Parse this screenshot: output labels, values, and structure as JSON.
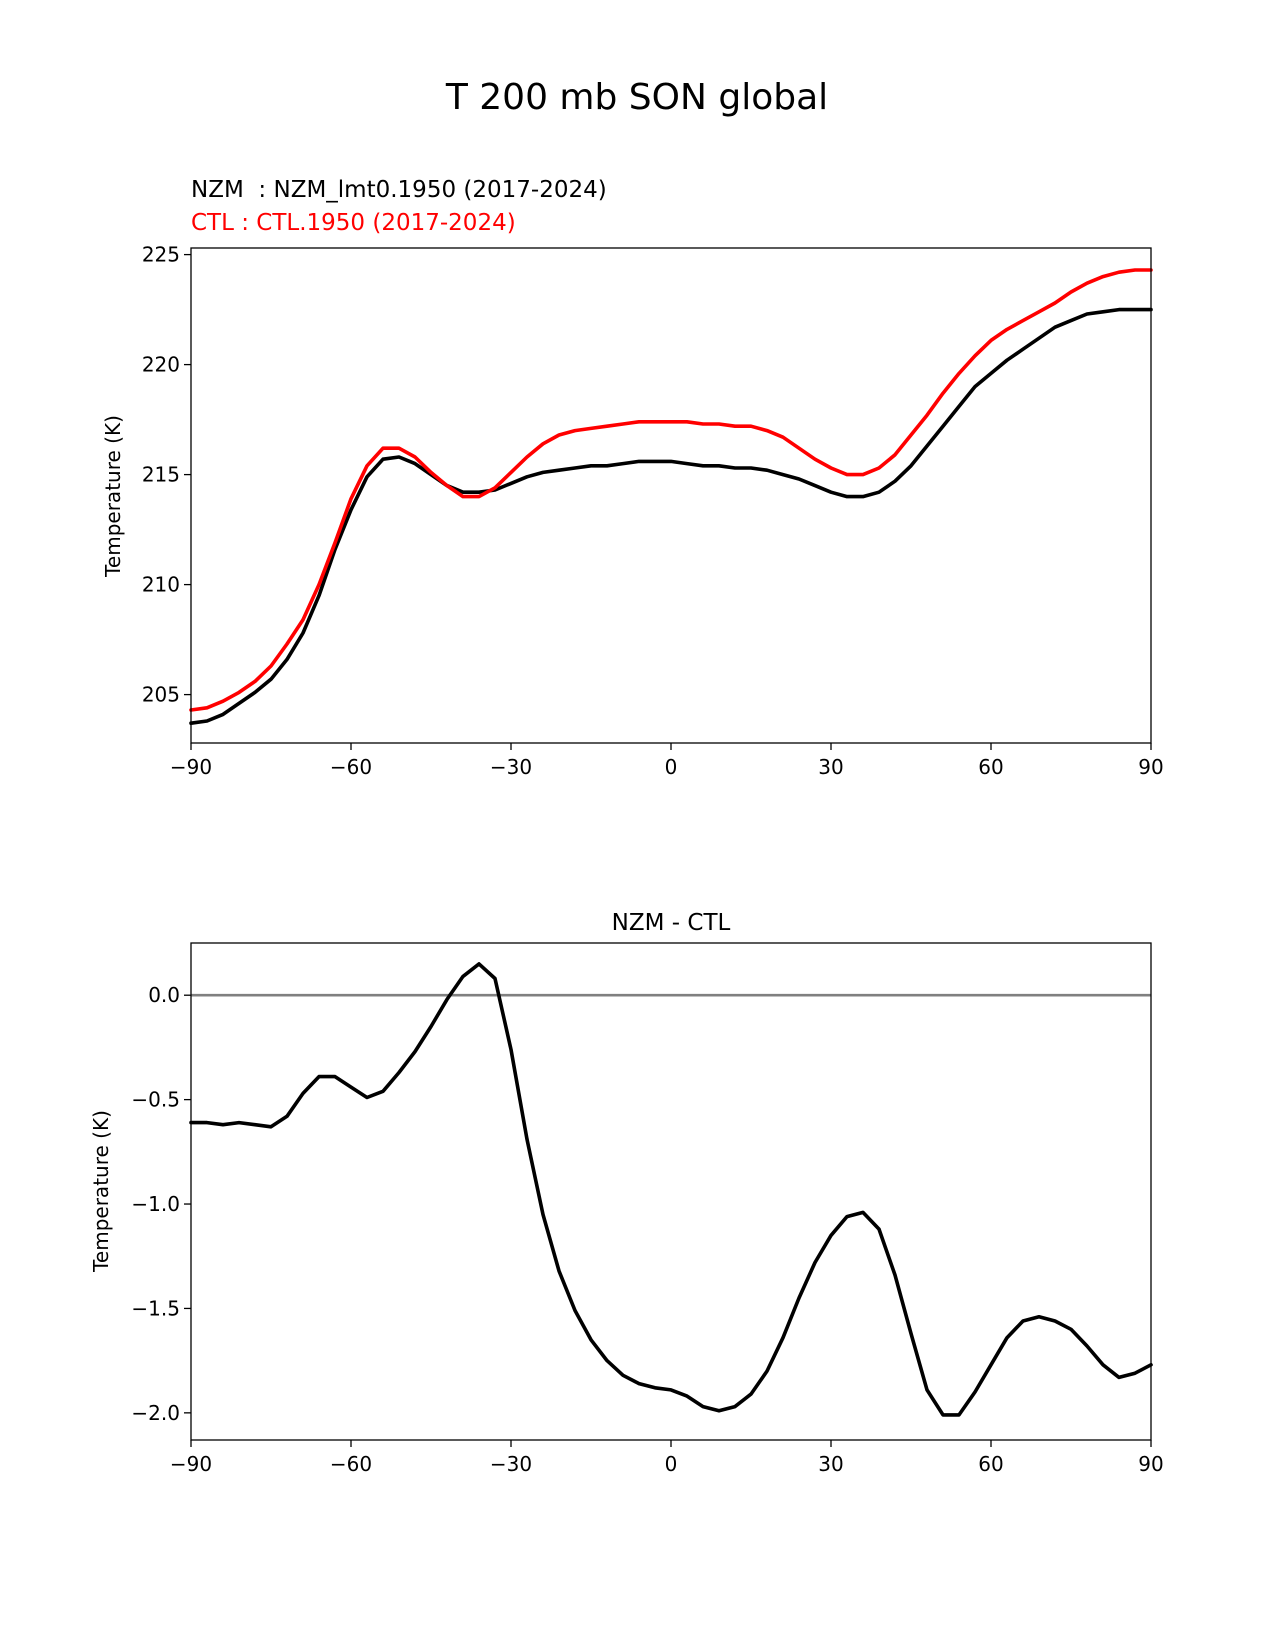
{
  "figure": {
    "title": "T 200 mb SON global"
  },
  "chart_data": [
    {
      "type": "line",
      "title": "",
      "legend": [
        {
          "name": "NZM  : NZM_lmt0.1950 (2017-2024)",
          "color": "#000000"
        },
        {
          "name": "CTL : CTL.1950 (2017-2024)",
          "color": "#ff0000"
        }
      ],
      "xlabel": "",
      "ylabel": "Temperature (K)",
      "xlim": [
        -90,
        90
      ],
      "ylim": [
        202.8,
        225.3
      ],
      "xticks": [
        -90,
        -60,
        -30,
        0,
        30,
        60,
        90
      ],
      "xtick_labels": [
        "−90",
        "−60",
        "−30",
        "0",
        "30",
        "60",
        "90"
      ],
      "yticks": [
        205,
        210,
        215,
        220,
        225
      ],
      "ytick_labels": [
        "205",
        "210",
        "215",
        "220",
        "225"
      ],
      "x": [
        -90,
        -87,
        -84,
        -81,
        -78,
        -75,
        -72,
        -69,
        -66,
        -63,
        -60,
        -57,
        -54,
        -51,
        -48,
        -45,
        -42,
        -39,
        -36,
        -33,
        -30,
        -27,
        -24,
        -21,
        -18,
        -15,
        -12,
        -9,
        -6,
        -3,
        0,
        3,
        6,
        9,
        12,
        15,
        18,
        21,
        24,
        27,
        30,
        33,
        36,
        39,
        42,
        45,
        48,
        51,
        54,
        57,
        60,
        63,
        66,
        69,
        72,
        75,
        78,
        81,
        84,
        87,
        90
      ],
      "series": [
        {
          "name": "NZM",
          "color": "#000000",
          "values": [
            203.7,
            203.8,
            204.1,
            204.6,
            205.1,
            205.7,
            206.6,
            207.8,
            209.5,
            211.6,
            213.4,
            214.9,
            215.7,
            215.8,
            215.5,
            215.0,
            214.5,
            214.2,
            214.2,
            214.3,
            214.6,
            214.9,
            215.1,
            215.2,
            215.3,
            215.4,
            215.4,
            215.5,
            215.6,
            215.6,
            215.6,
            215.5,
            215.4,
            215.4,
            215.3,
            215.3,
            215.2,
            215.0,
            214.8,
            214.5,
            214.2,
            214.0,
            214.0,
            214.2,
            214.7,
            215.4,
            216.3,
            217.2,
            218.1,
            219.0,
            219.6,
            220.2,
            220.7,
            221.2,
            221.7,
            222.0,
            222.3,
            222.4,
            222.5,
            222.5,
            222.5
          ]
        },
        {
          "name": "CTL",
          "color": "#ff0000",
          "values": [
            204.3,
            204.4,
            204.7,
            205.1,
            205.6,
            206.3,
            207.3,
            208.4,
            210.0,
            211.9,
            213.9,
            215.4,
            216.2,
            216.2,
            215.8,
            215.1,
            214.5,
            214.0,
            214.0,
            214.4,
            215.1,
            215.8,
            216.4,
            216.8,
            217.0,
            217.1,
            217.2,
            217.3,
            217.4,
            217.4,
            217.4,
            217.4,
            217.3,
            217.3,
            217.2,
            217.2,
            217.0,
            216.7,
            216.2,
            215.7,
            215.3,
            215.0,
            215.0,
            215.3,
            215.9,
            216.8,
            217.7,
            218.7,
            219.6,
            220.4,
            221.1,
            221.6,
            222.0,
            222.4,
            222.8,
            223.3,
            223.7,
            224.0,
            224.2,
            224.3,
            224.3
          ]
        }
      ]
    },
    {
      "type": "line",
      "title": "NZM - CTL",
      "xlabel": "",
      "ylabel": "Temperature (K)",
      "xlim": [
        -90,
        90
      ],
      "ylim": [
        -2.13,
        0.25
      ],
      "xticks": [
        -90,
        -60,
        -30,
        0,
        30,
        60,
        90
      ],
      "xtick_labels": [
        "−90",
        "−60",
        "−30",
        "0",
        "30",
        "60",
        "90"
      ],
      "yticks": [
        0.0,
        -0.5,
        -1.0,
        -1.5,
        -2.0
      ],
      "ytick_labels": [
        "0.0",
        "−0.5",
        "−1.0",
        "−1.5",
        "−2.0"
      ],
      "reference_line": {
        "y": 0.0,
        "color": "#808080"
      },
      "x": [
        -90,
        -87,
        -84,
        -81,
        -78,
        -75,
        -72,
        -69,
        -66,
        -63,
        -60,
        -57,
        -54,
        -51,
        -48,
        -45,
        -42,
        -39,
        -36,
        -33,
        -30,
        -27,
        -24,
        -21,
        -18,
        -15,
        -12,
        -9,
        -6,
        -3,
        0,
        3,
        6,
        9,
        12,
        15,
        18,
        21,
        24,
        27,
        30,
        33,
        36,
        39,
        42,
        45,
        48,
        51,
        54,
        57,
        60,
        63,
        66,
        69,
        72,
        75,
        78,
        81,
        84,
        87,
        90
      ],
      "series": [
        {
          "name": "NZM - CTL",
          "color": "#000000",
          "values": [
            -0.61,
            -0.61,
            -0.62,
            -0.61,
            -0.62,
            -0.63,
            -0.58,
            -0.47,
            -0.39,
            -0.39,
            -0.44,
            -0.49,
            -0.46,
            -0.37,
            -0.27,
            -0.15,
            -0.02,
            0.09,
            0.15,
            0.08,
            -0.26,
            -0.69,
            -1.05,
            -1.32,
            -1.51,
            -1.65,
            -1.75,
            -1.82,
            -1.86,
            -1.88,
            -1.89,
            -1.92,
            -1.97,
            -1.99,
            -1.97,
            -1.91,
            -1.8,
            -1.64,
            -1.45,
            -1.28,
            -1.15,
            -1.06,
            -1.04,
            -1.12,
            -1.34,
            -1.62,
            -1.89,
            -2.01,
            -2.01,
            -1.9,
            -1.77,
            -1.64,
            -1.56,
            -1.54,
            -1.56,
            -1.6,
            -1.68,
            -1.77,
            -1.83,
            -1.81,
            -1.77
          ]
        }
      ]
    }
  ]
}
